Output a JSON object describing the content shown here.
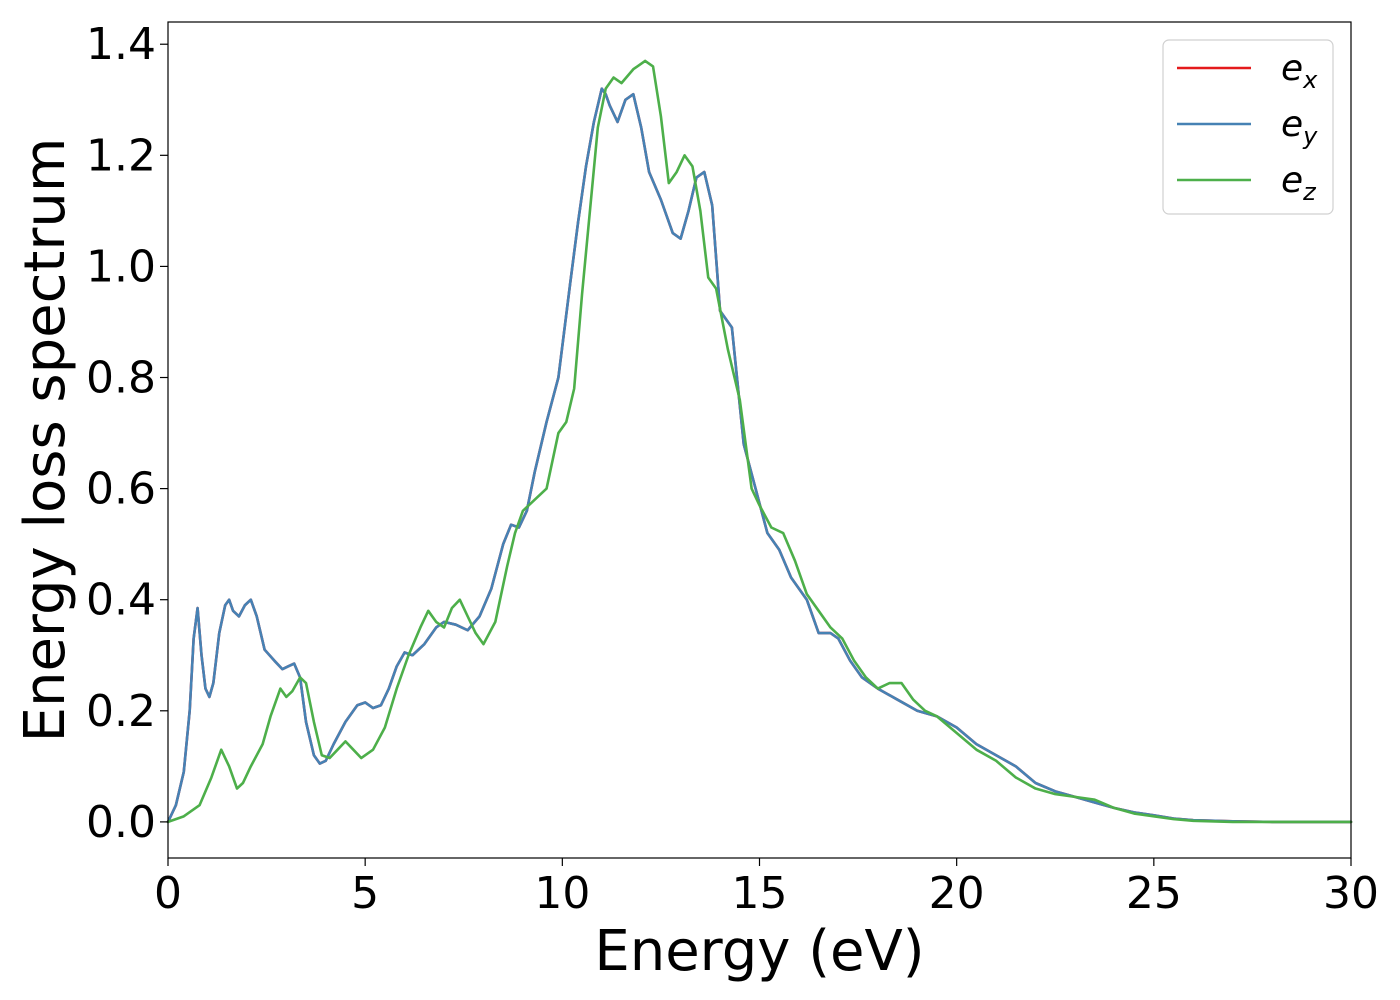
{
  "chart_data": {
    "type": "line",
    "xlabel": "Energy (eV)",
    "ylabel": "Energy loss spectrum",
    "xlim": [
      0,
      30
    ],
    "ylim": [
      -0.065,
      1.44
    ],
    "xticks": [
      "0",
      "5",
      "10",
      "15",
      "20",
      "25",
      "30"
    ],
    "yticks": [
      "0.0",
      "0.2",
      "0.4",
      "0.6",
      "0.8",
      "1.0",
      "1.2",
      "1.4"
    ],
    "grid": false,
    "legend_position": "top-right",
    "series": [
      {
        "name": "e_x",
        "legend_base": "e",
        "legend_sub": "x",
        "color": "#e41a1c",
        "x": [
          0,
          0.2,
          0.4,
          0.55,
          0.65,
          0.75,
          0.85,
          0.95,
          1.05,
          1.15,
          1.3,
          1.45,
          1.55,
          1.65,
          1.8,
          1.95,
          2.1,
          2.25,
          2.45,
          2.7,
          2.9,
          3.05,
          3.2,
          3.35,
          3.5,
          3.7,
          3.85,
          4.0,
          4.2,
          4.5,
          4.8,
          5.0,
          5.2,
          5.4,
          5.6,
          5.8,
          6.0,
          6.2,
          6.5,
          6.8,
          7.0,
          7.3,
          7.6,
          7.9,
          8.2,
          8.5,
          8.7,
          8.9,
          9.1,
          9.3,
          9.6,
          9.9,
          10.2,
          10.4,
          10.6,
          10.8,
          11.0,
          11.1,
          11.2,
          11.4,
          11.6,
          11.8,
          12.0,
          12.2,
          12.5,
          12.8,
          13.0,
          13.2,
          13.4,
          13.6,
          13.8,
          14.0,
          14.3,
          14.6,
          14.9,
          15.2,
          15.5,
          15.8,
          16.0,
          16.2,
          16.5,
          16.8,
          17.0,
          17.3,
          17.6,
          18.0,
          18.5,
          19.0,
          19.5,
          20.0,
          20.5,
          21.0,
          21.5,
          22.0,
          22.5,
          23.0,
          23.5,
          24.0,
          24.5,
          25.0,
          25.5,
          26.0,
          27.0,
          28.0,
          29.0,
          30.0
        ],
        "y": [
          0.0,
          0.03,
          0.09,
          0.2,
          0.33,
          0.385,
          0.3,
          0.24,
          0.225,
          0.25,
          0.34,
          0.39,
          0.4,
          0.38,
          0.37,
          0.39,
          0.4,
          0.37,
          0.31,
          0.29,
          0.275,
          0.28,
          0.285,
          0.26,
          0.18,
          0.12,
          0.105,
          0.11,
          0.14,
          0.18,
          0.21,
          0.215,
          0.205,
          0.21,
          0.24,
          0.28,
          0.305,
          0.3,
          0.32,
          0.35,
          0.36,
          0.355,
          0.345,
          0.37,
          0.42,
          0.5,
          0.535,
          0.53,
          0.56,
          0.63,
          0.72,
          0.8,
          0.97,
          1.08,
          1.18,
          1.26,
          1.32,
          1.31,
          1.29,
          1.26,
          1.3,
          1.31,
          1.25,
          1.17,
          1.12,
          1.06,
          1.05,
          1.1,
          1.16,
          1.17,
          1.11,
          0.92,
          0.89,
          0.68,
          0.6,
          0.52,
          0.49,
          0.44,
          0.42,
          0.4,
          0.34,
          0.34,
          0.33,
          0.29,
          0.26,
          0.24,
          0.22,
          0.2,
          0.19,
          0.17,
          0.14,
          0.12,
          0.1,
          0.07,
          0.055,
          0.045,
          0.035,
          0.025,
          0.017,
          0.012,
          0.006,
          0.003,
          0.001,
          0.0,
          0.0,
          0.0
        ]
      },
      {
        "name": "e_y",
        "legend_base": "e",
        "legend_sub": "y",
        "color": "#4682b4",
        "x": [
          0,
          0.2,
          0.4,
          0.55,
          0.65,
          0.75,
          0.85,
          0.95,
          1.05,
          1.15,
          1.3,
          1.45,
          1.55,
          1.65,
          1.8,
          1.95,
          2.1,
          2.25,
          2.45,
          2.7,
          2.9,
          3.05,
          3.2,
          3.35,
          3.5,
          3.7,
          3.85,
          4.0,
          4.2,
          4.5,
          4.8,
          5.0,
          5.2,
          5.4,
          5.6,
          5.8,
          6.0,
          6.2,
          6.5,
          6.8,
          7.0,
          7.3,
          7.6,
          7.9,
          8.2,
          8.5,
          8.7,
          8.9,
          9.1,
          9.3,
          9.6,
          9.9,
          10.2,
          10.4,
          10.6,
          10.8,
          11.0,
          11.1,
          11.2,
          11.4,
          11.6,
          11.8,
          12.0,
          12.2,
          12.5,
          12.8,
          13.0,
          13.2,
          13.4,
          13.6,
          13.8,
          14.0,
          14.3,
          14.6,
          14.9,
          15.2,
          15.5,
          15.8,
          16.0,
          16.2,
          16.5,
          16.8,
          17.0,
          17.3,
          17.6,
          18.0,
          18.5,
          19.0,
          19.5,
          20.0,
          20.5,
          21.0,
          21.5,
          22.0,
          22.5,
          23.0,
          23.5,
          24.0,
          24.5,
          25.0,
          25.5,
          26.0,
          27.0,
          28.0,
          29.0,
          30.0
        ],
        "y": [
          0.0,
          0.03,
          0.09,
          0.2,
          0.33,
          0.385,
          0.3,
          0.24,
          0.225,
          0.25,
          0.34,
          0.39,
          0.4,
          0.38,
          0.37,
          0.39,
          0.4,
          0.37,
          0.31,
          0.29,
          0.275,
          0.28,
          0.285,
          0.26,
          0.18,
          0.12,
          0.105,
          0.11,
          0.14,
          0.18,
          0.21,
          0.215,
          0.205,
          0.21,
          0.24,
          0.28,
          0.305,
          0.3,
          0.32,
          0.35,
          0.36,
          0.355,
          0.345,
          0.37,
          0.42,
          0.5,
          0.535,
          0.53,
          0.56,
          0.63,
          0.72,
          0.8,
          0.97,
          1.08,
          1.18,
          1.26,
          1.32,
          1.31,
          1.29,
          1.26,
          1.3,
          1.31,
          1.25,
          1.17,
          1.12,
          1.06,
          1.05,
          1.1,
          1.16,
          1.17,
          1.11,
          0.92,
          0.89,
          0.68,
          0.6,
          0.52,
          0.49,
          0.44,
          0.42,
          0.4,
          0.34,
          0.34,
          0.33,
          0.29,
          0.26,
          0.24,
          0.22,
          0.2,
          0.19,
          0.17,
          0.14,
          0.12,
          0.1,
          0.07,
          0.055,
          0.045,
          0.035,
          0.025,
          0.017,
          0.012,
          0.006,
          0.003,
          0.001,
          0.0,
          0.0,
          0.0
        ]
      },
      {
        "name": "e_z",
        "legend_base": "e",
        "legend_sub": "z",
        "color": "#4daf4a",
        "x": [
          0,
          0.4,
          0.8,
          1.1,
          1.35,
          1.55,
          1.75,
          1.9,
          2.1,
          2.4,
          2.6,
          2.85,
          3.0,
          3.15,
          3.35,
          3.5,
          3.7,
          3.9,
          4.1,
          4.3,
          4.5,
          4.7,
          4.9,
          5.2,
          5.5,
          5.8,
          6.1,
          6.4,
          6.6,
          6.8,
          7.0,
          7.2,
          7.4,
          7.6,
          7.8,
          8.0,
          8.3,
          8.6,
          8.8,
          9.0,
          9.3,
          9.6,
          9.9,
          10.1,
          10.3,
          10.5,
          10.7,
          10.9,
          11.1,
          11.3,
          11.5,
          11.8,
          12.1,
          12.3,
          12.5,
          12.7,
          12.9,
          13.1,
          13.3,
          13.5,
          13.7,
          13.9,
          14.2,
          14.5,
          14.8,
          15.0,
          15.3,
          15.6,
          15.9,
          16.2,
          16.5,
          16.8,
          17.1,
          17.4,
          17.7,
          18.0,
          18.3,
          18.6,
          18.9,
          19.2,
          19.5,
          20.0,
          20.5,
          21.0,
          21.5,
          22.0,
          22.5,
          23.0,
          23.5,
          24.0,
          24.5,
          25.0,
          25.5,
          26.0,
          27.0,
          28.0,
          29.0,
          30.0
        ],
        "y": [
          0.0,
          0.01,
          0.03,
          0.08,
          0.13,
          0.1,
          0.06,
          0.07,
          0.1,
          0.14,
          0.19,
          0.24,
          0.225,
          0.235,
          0.26,
          0.25,
          0.18,
          0.12,
          0.115,
          0.13,
          0.145,
          0.13,
          0.115,
          0.13,
          0.17,
          0.24,
          0.3,
          0.35,
          0.38,
          0.36,
          0.35,
          0.385,
          0.4,
          0.37,
          0.34,
          0.32,
          0.36,
          0.46,
          0.52,
          0.56,
          0.58,
          0.6,
          0.7,
          0.72,
          0.78,
          0.95,
          1.1,
          1.25,
          1.32,
          1.34,
          1.33,
          1.355,
          1.37,
          1.36,
          1.27,
          1.15,
          1.17,
          1.2,
          1.18,
          1.1,
          0.98,
          0.96,
          0.85,
          0.76,
          0.6,
          0.57,
          0.53,
          0.52,
          0.47,
          0.41,
          0.38,
          0.35,
          0.33,
          0.29,
          0.26,
          0.24,
          0.25,
          0.25,
          0.22,
          0.2,
          0.19,
          0.16,
          0.13,
          0.11,
          0.08,
          0.06,
          0.05,
          0.045,
          0.04,
          0.025,
          0.015,
          0.01,
          0.005,
          0.002,
          0.0,
          0.0,
          0.0,
          0.0
        ]
      }
    ]
  }
}
